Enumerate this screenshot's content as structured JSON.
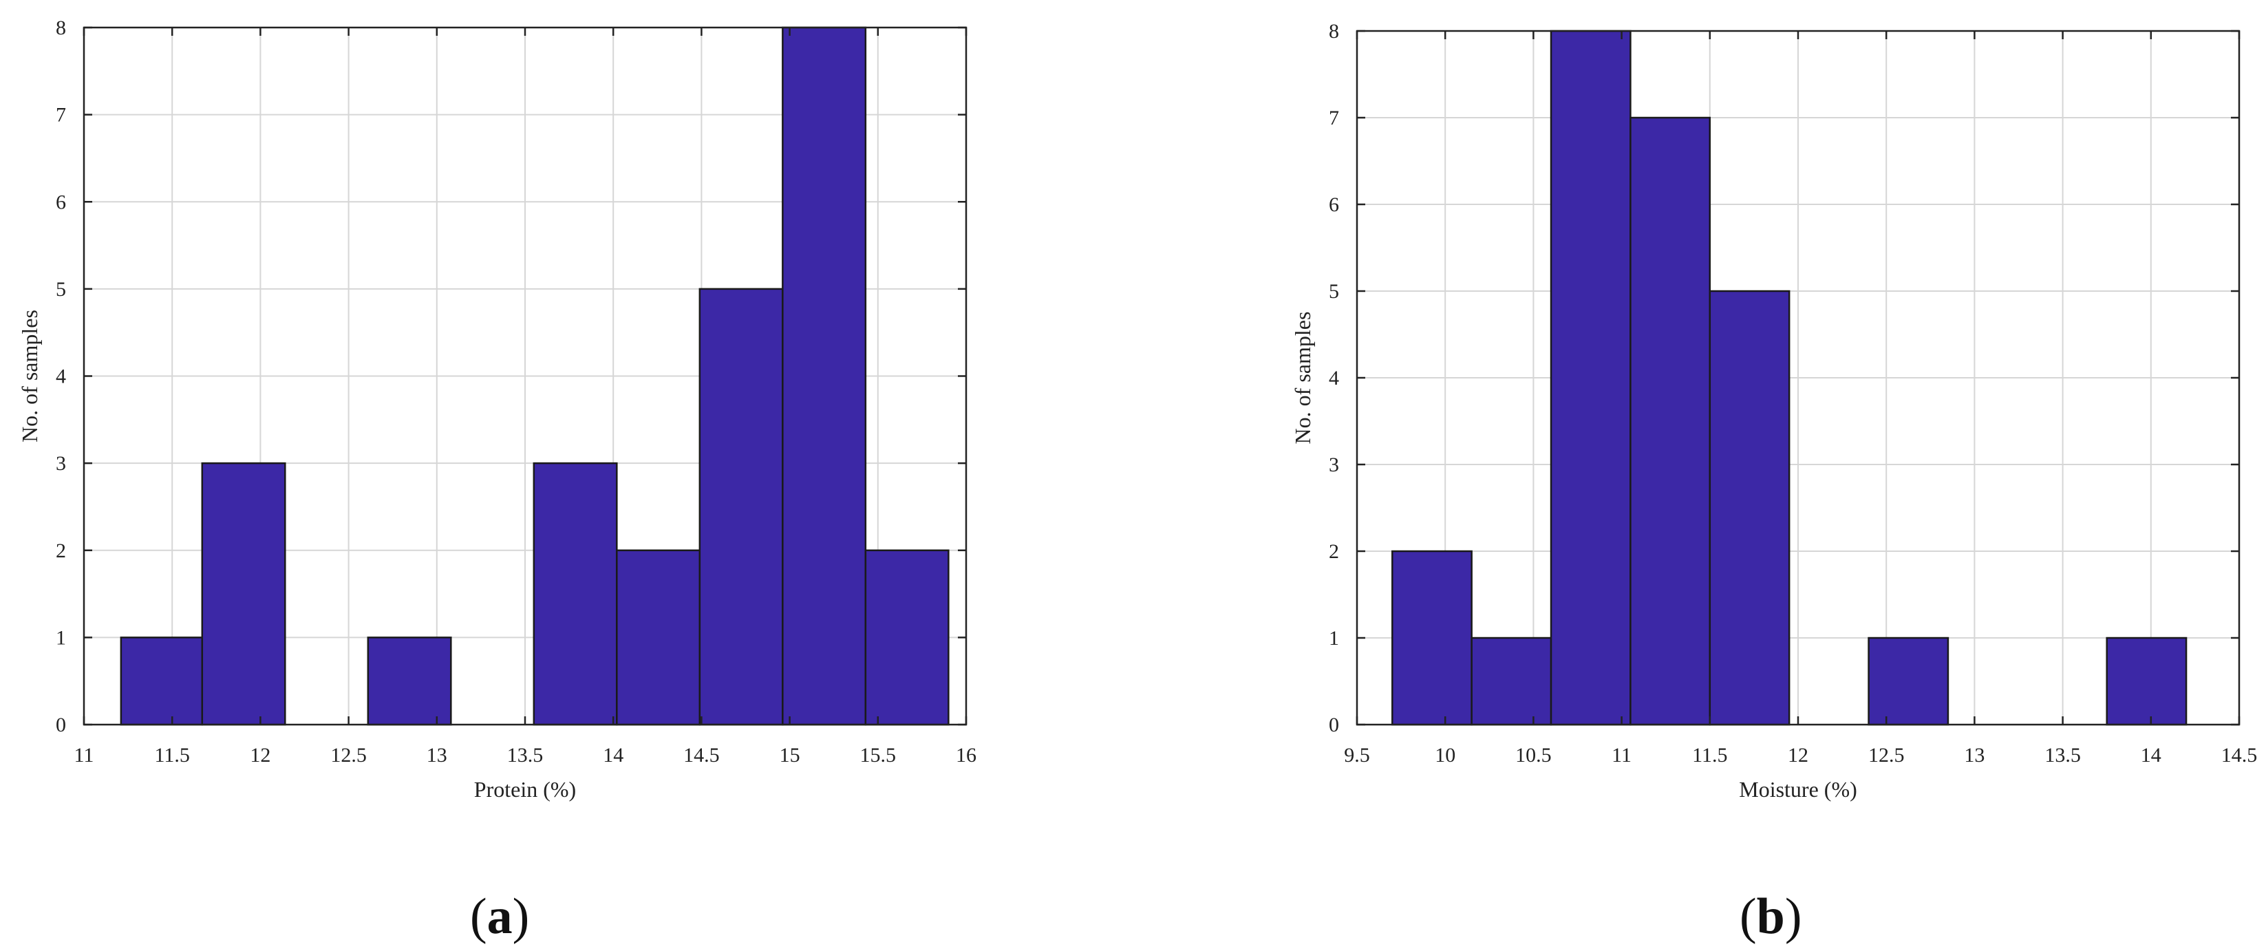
{
  "chart_data": [
    {
      "type": "bar",
      "panel_label": "a",
      "xlabel": "Protein (%)",
      "ylabel": "No. of samples",
      "xlim": [
        11,
        16
      ],
      "ylim": [
        0,
        8
      ],
      "grid": true,
      "x_ticks": [
        "11",
        "11.5",
        "12",
        "12.5",
        "13",
        "13.5",
        "14",
        "14.5",
        "15",
        "15.5",
        "16"
      ],
      "y_ticks": [
        "0",
        "1",
        "2",
        "3",
        "4",
        "5",
        "6",
        "7",
        "8"
      ],
      "bar_color": "#3c28a6",
      "bins": [
        {
          "start": 11.21,
          "end": 11.67,
          "count": 1
        },
        {
          "start": 11.67,
          "end": 12.14,
          "count": 3
        },
        {
          "start": 12.14,
          "end": 12.61,
          "count": 0
        },
        {
          "start": 12.61,
          "end": 13.08,
          "count": 1
        },
        {
          "start": 13.08,
          "end": 13.55,
          "count": 0
        },
        {
          "start": 13.55,
          "end": 14.02,
          "count": 3
        },
        {
          "start": 14.02,
          "end": 14.49,
          "count": 2
        },
        {
          "start": 14.49,
          "end": 14.96,
          "count": 5
        },
        {
          "start": 14.96,
          "end": 15.43,
          "count": 8
        },
        {
          "start": 15.43,
          "end": 15.9,
          "count": 2
        }
      ]
    },
    {
      "type": "bar",
      "panel_label": "b",
      "xlabel": "Moisture (%)",
      "ylabel": "No. of samples",
      "xlim": [
        9.5,
        14.5
      ],
      "ylim": [
        0,
        8
      ],
      "grid": true,
      "x_ticks": [
        "9.5",
        "10",
        "10.5",
        "11",
        "11.5",
        "12",
        "12.5",
        "13",
        "13.5",
        "14",
        "14.5"
      ],
      "y_ticks": [
        "0",
        "1",
        "2",
        "3",
        "4",
        "5",
        "6",
        "7",
        "8"
      ],
      "bar_color": "#3c28a6",
      "bins": [
        {
          "start": 9.7,
          "end": 10.15,
          "count": 2
        },
        {
          "start": 10.15,
          "end": 10.6,
          "count": 1
        },
        {
          "start": 10.6,
          "end": 11.05,
          "count": 8
        },
        {
          "start": 11.05,
          "end": 11.5,
          "count": 7
        },
        {
          "start": 11.5,
          "end": 11.95,
          "count": 5
        },
        {
          "start": 11.95,
          "end": 12.4,
          "count": 0
        },
        {
          "start": 12.4,
          "end": 12.85,
          "count": 1
        },
        {
          "start": 12.85,
          "end": 13.3,
          "count": 0
        },
        {
          "start": 13.3,
          "end": 13.75,
          "count": 0
        },
        {
          "start": 13.75,
          "end": 14.2,
          "count": 1
        }
      ]
    }
  ]
}
